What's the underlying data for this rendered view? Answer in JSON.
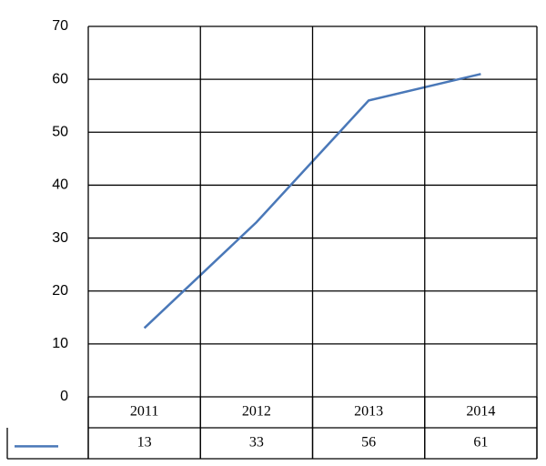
{
  "chart_data": {
    "type": "line",
    "categories": [
      "2011",
      "2012",
      "2013",
      "2014"
    ],
    "values": [
      13,
      33,
      56,
      61
    ],
    "color": "#4a78b8",
    "ylim": [
      0,
      70
    ],
    "yticks": [
      0,
      10,
      20,
      30,
      40,
      50,
      60,
      70
    ],
    "grid": true,
    "data_table": true
  }
}
